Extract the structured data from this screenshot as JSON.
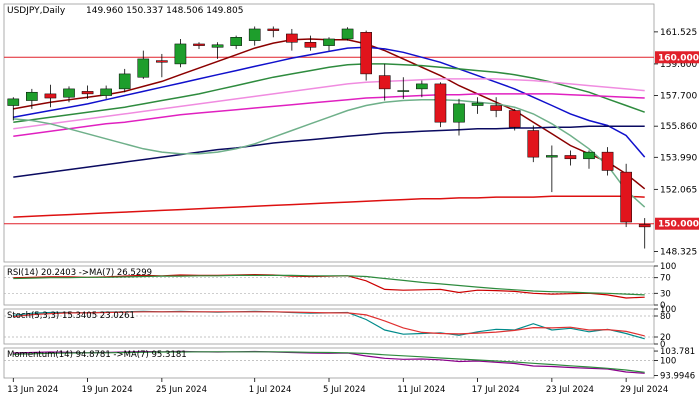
{
  "chart_data": {
    "type": "candlestick",
    "title": "USDJPY,Daily",
    "ohlc_readout": "149.960 150.337 148.506 149.805",
    "price_axis": {
      "ticks": [
        "161.525",
        "159.600",
        "157.700",
        "155.860",
        "153.990",
        "152.065",
        "148.325"
      ],
      "range": [
        147.7,
        163.2
      ]
    },
    "price_lines": [
      {
        "label": "160.000",
        "value": 160.0,
        "color": "#e0202a"
      },
      {
        "label": "150.000",
        "value": 150.0,
        "color": "#e0202a"
      }
    ],
    "x_axis": {
      "ticks": [
        "13 Jun 2024",
        "19 Jun 2024",
        "25 Jun 2024",
        "1 Jul 2024",
        "5 Jul 2024",
        "11 Jul 2024",
        "17 Jul 2024",
        "23 Jul 2024",
        "29 Jul 2024"
      ],
      "tick_index": [
        0,
        4,
        8,
        13,
        17,
        21,
        25,
        29,
        33
      ]
    },
    "candles": [
      {
        "o": 157.1,
        "h": 157.6,
        "l": 156.2,
        "c": 157.5
      },
      {
        "o": 157.4,
        "h": 158.1,
        "l": 156.9,
        "c": 157.9
      },
      {
        "o": 157.8,
        "h": 158.35,
        "l": 157.0,
        "c": 157.55
      },
      {
        "o": 157.6,
        "h": 158.25,
        "l": 157.3,
        "c": 158.1
      },
      {
        "o": 157.95,
        "h": 158.3,
        "l": 157.5,
        "c": 157.8
      },
      {
        "o": 157.7,
        "h": 158.3,
        "l": 157.5,
        "c": 158.1
      },
      {
        "o": 158.1,
        "h": 159.3,
        "l": 157.9,
        "c": 159.0
      },
      {
        "o": 158.8,
        "h": 160.4,
        "l": 158.7,
        "c": 159.9
      },
      {
        "o": 159.8,
        "h": 160.2,
        "l": 158.8,
        "c": 159.7
      },
      {
        "o": 159.6,
        "h": 161.1,
        "l": 159.4,
        "c": 160.8
      },
      {
        "o": 160.8,
        "h": 160.9,
        "l": 160.5,
        "c": 160.7
      },
      {
        "o": 160.6,
        "h": 160.9,
        "l": 159.9,
        "c": 160.75
      },
      {
        "o": 160.7,
        "h": 161.3,
        "l": 160.5,
        "c": 161.2
      },
      {
        "o": 161.0,
        "h": 161.85,
        "l": 160.7,
        "c": 161.7
      },
      {
        "o": 161.7,
        "h": 161.85,
        "l": 161.2,
        "c": 161.6
      },
      {
        "o": 161.4,
        "h": 161.7,
        "l": 160.4,
        "c": 160.9
      },
      {
        "o": 160.9,
        "h": 161.3,
        "l": 160.4,
        "c": 160.6
      },
      {
        "o": 160.7,
        "h": 161.2,
        "l": 160.4,
        "c": 161.1
      },
      {
        "o": 161.1,
        "h": 161.8,
        "l": 161.0,
        "c": 161.7
      },
      {
        "o": 161.5,
        "h": 161.6,
        "l": 158.6,
        "c": 159.0
      },
      {
        "o": 158.9,
        "h": 159.6,
        "l": 157.4,
        "c": 158.1
      },
      {
        "o": 158.0,
        "h": 158.8,
        "l": 157.5,
        "c": 158.0
      },
      {
        "o": 158.1,
        "h": 158.6,
        "l": 157.6,
        "c": 158.4
      },
      {
        "o": 158.4,
        "h": 158.5,
        "l": 155.8,
        "c": 156.1
      },
      {
        "o": 156.1,
        "h": 157.5,
        "l": 155.3,
        "c": 157.2
      },
      {
        "o": 157.1,
        "h": 157.6,
        "l": 156.6,
        "c": 157.25
      },
      {
        "o": 157.1,
        "h": 157.6,
        "l": 156.4,
        "c": 156.8
      },
      {
        "o": 156.8,
        "h": 156.9,
        "l": 155.6,
        "c": 155.8
      },
      {
        "o": 155.6,
        "h": 155.9,
        "l": 153.7,
        "c": 154.0
      },
      {
        "o": 154.0,
        "h": 154.7,
        "l": 151.9,
        "c": 154.1
      },
      {
        "o": 154.1,
        "h": 154.4,
        "l": 153.5,
        "c": 153.9
      },
      {
        "o": 153.9,
        "h": 154.4,
        "l": 153.3,
        "c": 154.3
      },
      {
        "o": 154.3,
        "h": 154.6,
        "l": 152.9,
        "c": 153.2
      },
      {
        "o": 153.1,
        "h": 153.6,
        "l": 149.8,
        "c": 150.1
      },
      {
        "o": 149.96,
        "h": 150.34,
        "l": 148.51,
        "c": 149.81
      }
    ],
    "moving_averages": [
      {
        "color": "#8b0000",
        "values": [
          156.9,
          157.1,
          157.3,
          157.45,
          157.6,
          157.75,
          157.95,
          158.25,
          158.55,
          158.95,
          159.35,
          159.75,
          160.15,
          160.55,
          160.85,
          161.05,
          161.1,
          161.05,
          161.05,
          160.8,
          160.4,
          159.9,
          159.4,
          158.9,
          158.3,
          157.8,
          157.3,
          156.8,
          156.1,
          155.4,
          154.7,
          154.2,
          153.7,
          153.0,
          152.1
        ]
      },
      {
        "color": "#1010cc",
        "values": [
          156.4,
          156.6,
          156.8,
          157.0,
          157.2,
          157.45,
          157.7,
          157.95,
          158.2,
          158.45,
          158.7,
          158.95,
          159.2,
          159.45,
          159.7,
          159.95,
          160.15,
          160.35,
          160.55,
          160.6,
          160.5,
          160.3,
          160.0,
          159.7,
          159.3,
          158.9,
          158.5,
          158.1,
          157.6,
          157.1,
          156.6,
          156.2,
          155.9,
          155.3,
          154.0
        ]
      },
      {
        "color": "#2e8b3e",
        "values": [
          156.1,
          156.25,
          156.4,
          156.55,
          156.7,
          156.85,
          157.0,
          157.2,
          157.4,
          157.6,
          157.8,
          158.05,
          158.3,
          158.55,
          158.8,
          159.0,
          159.2,
          159.4,
          159.55,
          159.6,
          159.6,
          159.55,
          159.5,
          159.4,
          159.3,
          159.2,
          159.1,
          158.95,
          158.75,
          158.5,
          158.2,
          157.9,
          157.5,
          157.1,
          156.7
        ]
      },
      {
        "color": "#f08ce0",
        "values": [
          155.7,
          155.85,
          156.0,
          156.15,
          156.3,
          156.45,
          156.6,
          156.75,
          156.9,
          157.05,
          157.2,
          157.35,
          157.5,
          157.65,
          157.8,
          157.95,
          158.1,
          158.25,
          158.4,
          158.5,
          158.55,
          158.6,
          158.65,
          158.7,
          158.7,
          158.7,
          158.7,
          158.65,
          158.6,
          158.5,
          158.4,
          158.3,
          158.2,
          158.1,
          158.0
        ]
      },
      {
        "color": "#e020c0",
        "values": [
          155.25,
          155.4,
          155.55,
          155.7,
          155.85,
          156.0,
          156.1,
          156.25,
          156.4,
          156.55,
          156.65,
          156.75,
          156.85,
          156.95,
          157.05,
          157.15,
          157.25,
          157.35,
          157.45,
          157.55,
          157.6,
          157.65,
          157.7,
          157.75,
          157.75,
          157.8,
          157.8,
          157.8,
          157.8,
          157.8,
          157.75,
          157.7,
          157.65,
          157.6,
          157.55
        ]
      },
      {
        "color": "#0a0a60",
        "values": [
          152.8,
          152.95,
          153.1,
          153.25,
          153.4,
          153.55,
          153.7,
          153.85,
          154.0,
          154.15,
          154.3,
          154.45,
          154.55,
          154.7,
          154.85,
          154.95,
          155.05,
          155.15,
          155.25,
          155.35,
          155.45,
          155.5,
          155.55,
          155.6,
          155.65,
          155.7,
          155.7,
          155.75,
          155.75,
          155.8,
          155.8,
          155.85,
          155.85,
          155.85,
          155.85
        ]
      },
      {
        "color": "#dd1010",
        "values": [
          150.4,
          150.45,
          150.5,
          150.55,
          150.6,
          150.65,
          150.7,
          150.75,
          150.8,
          150.85,
          150.9,
          150.95,
          151.0,
          151.05,
          151.1,
          151.15,
          151.2,
          151.25,
          151.3,
          151.35,
          151.4,
          151.45,
          151.5,
          151.5,
          151.55,
          151.55,
          151.6,
          151.6,
          151.6,
          151.65,
          151.65,
          151.65,
          151.65,
          151.65,
          151.6
        ]
      },
      {
        "color": "#6fb08a",
        "values": [
          156.3,
          156.2,
          156.0,
          155.7,
          155.4,
          155.1,
          154.8,
          154.5,
          154.3,
          154.2,
          154.2,
          154.3,
          154.5,
          154.8,
          155.2,
          155.6,
          156.0,
          156.4,
          156.8,
          157.1,
          157.3,
          157.4,
          157.45,
          157.45,
          157.4,
          157.3,
          157.2,
          157.0,
          156.6,
          156.0,
          155.3,
          154.5,
          153.5,
          152.0,
          151.0
        ]
      }
    ],
    "indicators": [
      {
        "label": "RSI(14) 20.2403 ->MA(7) 26.5299",
        "ticks": [
          "100",
          "70",
          "30",
          "0"
        ],
        "tick_values": [
          100,
          70,
          30,
          0
        ],
        "range": [
          0,
          100
        ],
        "levels": [
          70,
          30
        ],
        "series": [
          {
            "color": "#cc0000",
            "values": [
              70,
              71,
              72,
              72,
              71,
              72,
              74,
              76,
              75,
              77,
              76,
              76,
              77,
              78,
              77,
              74,
              73,
              74,
              75,
              62,
              40,
              38,
              39,
              40,
              32,
              38,
              37,
              35,
              30,
              28,
              29,
              30,
              26,
              18,
              20
            ]
          },
          {
            "color": "#2e8b3e",
            "values": [
              68,
              69,
              70,
              70,
              71,
              71,
              72,
              73,
              74,
              74,
              75,
              75,
              76,
              76,
              76,
              76,
              75,
              75,
              75,
              73,
              68,
              63,
              58,
              54,
              50,
              46,
              42,
              39,
              36,
              34,
              33,
              31,
              30,
              28,
              26
            ]
          }
        ]
      },
      {
        "label": "Stoch(5,3,3) 15.3405 23.0261",
        "ticks": [
          "100",
          "80",
          "20",
          "0"
        ],
        "tick_values": [
          100,
          80,
          20,
          0
        ],
        "range": [
          0,
          100
        ],
        "levels": [
          80,
          20
        ],
        "series": [
          {
            "color": "#008b8b",
            "values": [
              82,
              88,
              90,
              90,
              89,
              91,
              92,
              93,
              92,
              93,
              92,
              91,
              92,
              93,
              92,
              90,
              88,
              89,
              90,
              70,
              40,
              28,
              30,
              32,
              25,
              35,
              42,
              40,
              58,
              40,
              45,
              35,
              42,
              30,
              15
            ]
          },
          {
            "color": "#e03030",
            "values": [
              78,
              84,
              87,
              89,
              89,
              90,
              91,
              92,
              92,
              92,
              92,
              92,
              92,
              92,
              92,
              91,
              90,
              89,
              89,
              83,
              66,
              46,
              33,
              30,
              29,
              31,
              34,
              39,
              47,
              46,
              48,
              40,
              41,
              36,
              23
            ]
          }
        ]
      },
      {
        "label": "Momentum(14) 94.8781 ->MA(7) 95.3181",
        "ticks": [
          "103.781",
          "100",
          "93.9946"
        ],
        "tick_values": [
          103.781,
          100,
          93.9946
        ],
        "range": [
          93.0,
          105.0
        ],
        "levels": [
          100
        ],
        "series": [
          {
            "color": "#8b008b",
            "values": [
              103.0,
              103.2,
              103.4,
              103.3,
              103.1,
              103.2,
              103.4,
              103.6,
              103.5,
              103.7,
              103.5,
              103.4,
              103.5,
              103.6,
              103.4,
              103.2,
              103.0,
              102.9,
              103.0,
              101.8,
              100.9,
              100.5,
              100.6,
              100.3,
              99.6,
              99.8,
              99.3,
              98.8,
              97.8,
              97.6,
              97.2,
              96.9,
              96.6,
              95.4,
              94.9
            ]
          },
          {
            "color": "#2e8b3e",
            "values": [
              102.5,
              102.7,
              102.9,
              103.0,
              103.1,
              103.1,
              103.2,
              103.3,
              103.4,
              103.4,
              103.5,
              103.5,
              103.5,
              103.5,
              103.5,
              103.4,
              103.3,
              103.2,
              103.1,
              102.8,
              102.3,
              101.9,
              101.5,
              101.0,
              100.6,
              100.2,
              99.8,
              99.4,
              98.9,
              98.4,
              97.9,
              97.4,
              96.9,
              96.2,
              95.3
            ]
          }
        ]
      }
    ]
  }
}
